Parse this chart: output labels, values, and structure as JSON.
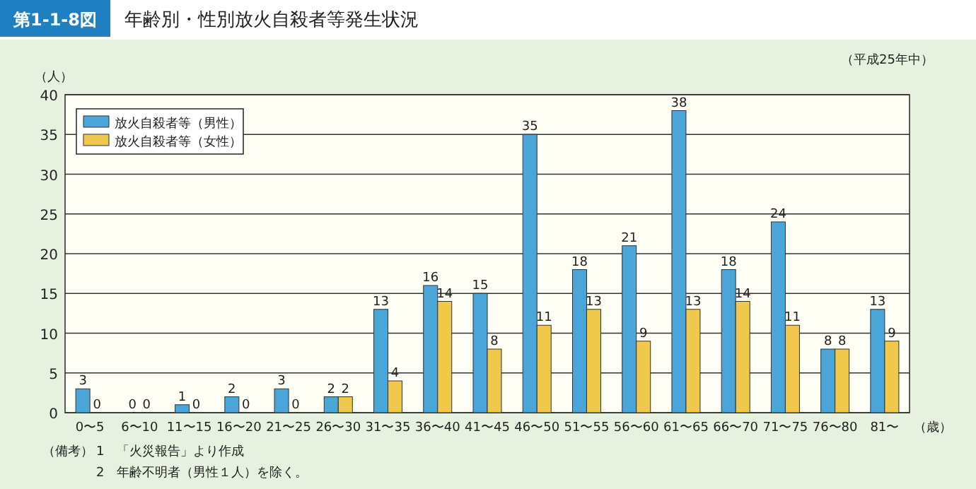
{
  "chart_data": {
    "type": "bar",
    "title": "年齢別・性別放火自殺者等発生状況",
    "subtitle": "（平成25年中）",
    "xlabel": "（歳）",
    "ylabel": "（人）",
    "annotations": [
      "第1-1-8図",
      "（備考）",
      "1　「火災報告」より作成",
      "2　年齢不明者（男性１人）を除く。"
    ],
    "categories": [
      "0〜5",
      "6〜10",
      "11〜15",
      "16〜20",
      "21〜25",
      "26〜30",
      "31〜35",
      "36〜40",
      "41〜45",
      "46〜50",
      "51〜55",
      "56〜60",
      "61〜65",
      "66〜70",
      "71〜75",
      "76〜80",
      "81〜"
    ],
    "series": [
      {
        "name": "放火自殺者等（男性）",
        "color": "#4aa6d8",
        "values": [
          3,
          0,
          1,
          2,
          3,
          2,
          13,
          16,
          15,
          35,
          18,
          21,
          38,
          18,
          24,
          8,
          13
        ]
      },
      {
        "name": "放火自殺者等（女性）",
        "color": "#f0c94c",
        "values": [
          0,
          0,
          0,
          0,
          0,
          2,
          4,
          14,
          8,
          11,
          13,
          9,
          13,
          14,
          11,
          8,
          9
        ]
      }
    ],
    "ylim": [
      0,
      40
    ],
    "yticks": [
      0,
      5,
      10,
      15,
      20,
      25,
      30,
      35,
      40
    ],
    "grid": "y",
    "legend": "top left",
    "data_labels": true
  }
}
